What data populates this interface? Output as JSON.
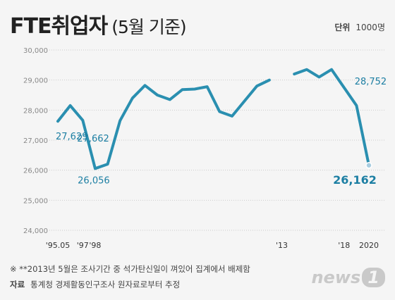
{
  "header": {
    "title": "FTE취업자",
    "subtitle": "(5월 기준)",
    "unit_label": "단위",
    "unit_value": "1000명"
  },
  "footer": {
    "note": "※  **2013년 5월은 조사기간 중 석가탄신일이 껴있어 집계에서 배제함",
    "source_label": "자료",
    "source_text": "통계청 경제활동인구조사 원자료로부터 추정",
    "logo_text": "news",
    "logo_num": "1"
  },
  "colors": {
    "line": "#2a8fb0",
    "label": "#1d7fa3",
    "grid": "#cccccc",
    "axis_text": "#888888"
  },
  "chart_data": {
    "type": "line",
    "title": "FTE취업자",
    "ylim": [
      24000,
      30000
    ],
    "yticks": [
      "24,000",
      "25,000",
      "26,000",
      "27,000",
      "28,000",
      "29,000",
      "30,000"
    ],
    "grid": true,
    "x": [
      1995,
      1996,
      1997,
      1998,
      1999,
      2000,
      2001,
      2002,
      2003,
      2004,
      2005,
      2006,
      2007,
      2008,
      2009,
      2010,
      2011,
      2012,
      2013,
      2014,
      2015,
      2016,
      2017,
      2018,
      2019,
      2020
    ],
    "xtick_labels": [
      {
        "x": 1995,
        "label": "'95.05"
      },
      {
        "x": 1997,
        "label": "'97"
      },
      {
        "x": 1998,
        "label": "'98"
      },
      {
        "x": 2013,
        "label": "'13"
      },
      {
        "x": 2018,
        "label": "'18"
      },
      {
        "x": 2020,
        "label": "2020"
      }
    ],
    "series": [
      {
        "values": [
          27629,
          28150,
          27662,
          26056,
          26200,
          27650,
          28400,
          28820,
          28500,
          28350,
          28680,
          28700,
          28780,
          27950,
          27800,
          28300,
          28800,
          29000,
          null,
          29200,
          29350,
          29100,
          29350,
          28752,
          28150,
          26162
        ]
      }
    ],
    "annotations": [
      {
        "x": 1995,
        "label": "27,629"
      },
      {
        "x": 1997,
        "label": "27,662"
      },
      {
        "x": 1998,
        "label": "26,056"
      },
      {
        "x": 2018,
        "label": "28,752"
      },
      {
        "x": 2020,
        "label": "26,162"
      }
    ]
  }
}
